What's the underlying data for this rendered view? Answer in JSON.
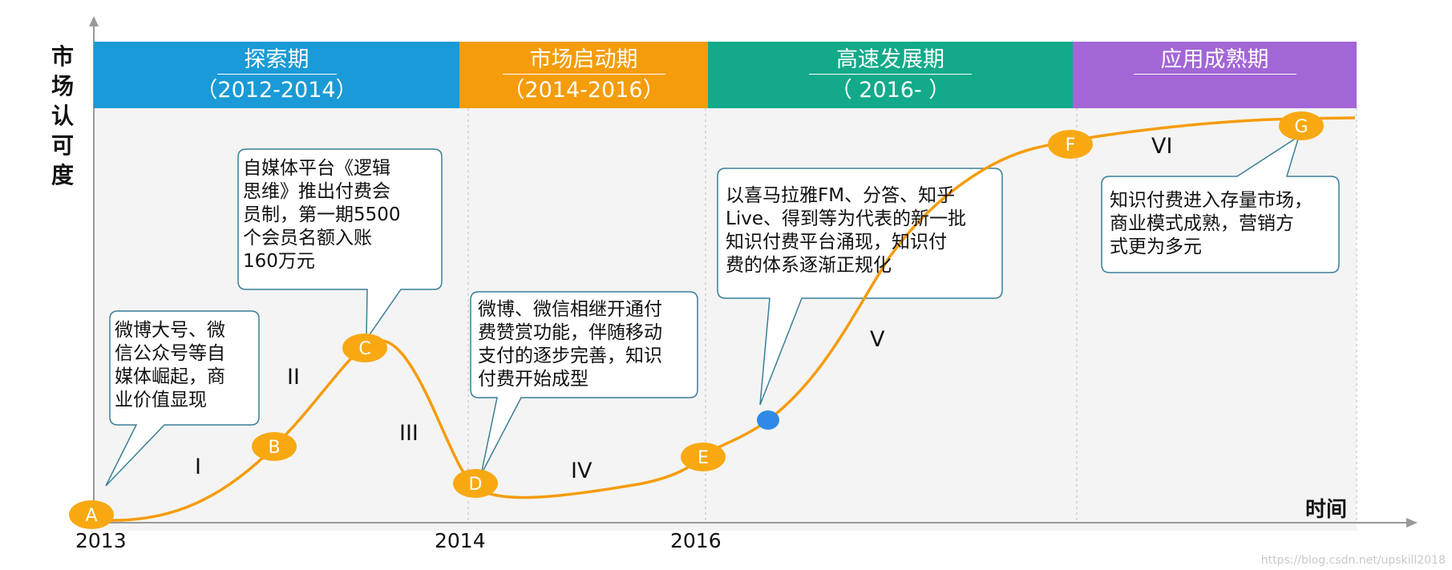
{
  "axes": {
    "y_label": [
      "市",
      "场",
      "认",
      "可",
      "度"
    ],
    "x_label": "时间",
    "ticks": [
      "2013",
      "2014",
      "2016"
    ]
  },
  "phases": [
    {
      "name": "探索期",
      "range": "（2012-2014）",
      "color": "#1a9ad6"
    },
    {
      "name": "市场启动期",
      "range": "（2014-2016）",
      "color": "#f59c0a"
    },
    {
      "name": "高速发展期",
      "range": "（  2016-     ）",
      "color": "#12aa8a"
    },
    {
      "name": "应用成熟期",
      "range": "",
      "color": "#a366d6"
    }
  ],
  "points": [
    {
      "label": "A"
    },
    {
      "label": "B"
    },
    {
      "label": "C"
    },
    {
      "label": "D"
    },
    {
      "label": "E"
    },
    {
      "label": "F"
    },
    {
      "label": "G"
    }
  ],
  "stages": [
    "I",
    "II",
    "III",
    "IV",
    "V",
    "VI"
  ],
  "callouts": [
    {
      "lines": [
        "微博大号、微",
        "信公众号等自",
        "媒体崛起，商",
        "业价值显现"
      ]
    },
    {
      "lines": [
        "自媒体平台《逻辑",
        "思维》推出付费会",
        "员制，第一期5500",
        "个会员名额入账",
        "160万元"
      ]
    },
    {
      "lines": [
        "微博、微信相继开通付",
        "费赞赏功能，伴随移动",
        "支付的逐步完善，知识",
        "付费开始成型"
      ]
    },
    {
      "lines": [
        "以喜马拉雅FM、分答、知乎",
        "Live、得到等为代表的新一批",
        "知识付费平台涌现，知识付",
        "费的体系逐渐正规化"
      ]
    },
    {
      "lines": [
        "知识付费进入存量市场，",
        "商业模式成熟，营销方",
        "式更为多元"
      ]
    }
  ],
  "colors": {
    "curve": "#f59c0a",
    "marker": "#f8a912",
    "blue_dot": "#2e8ae6",
    "callout_border": "#3a7f97",
    "axis": "#999999"
  },
  "footer": {
    "watermark": "https://blog.csdn.net/upskill2018"
  }
}
